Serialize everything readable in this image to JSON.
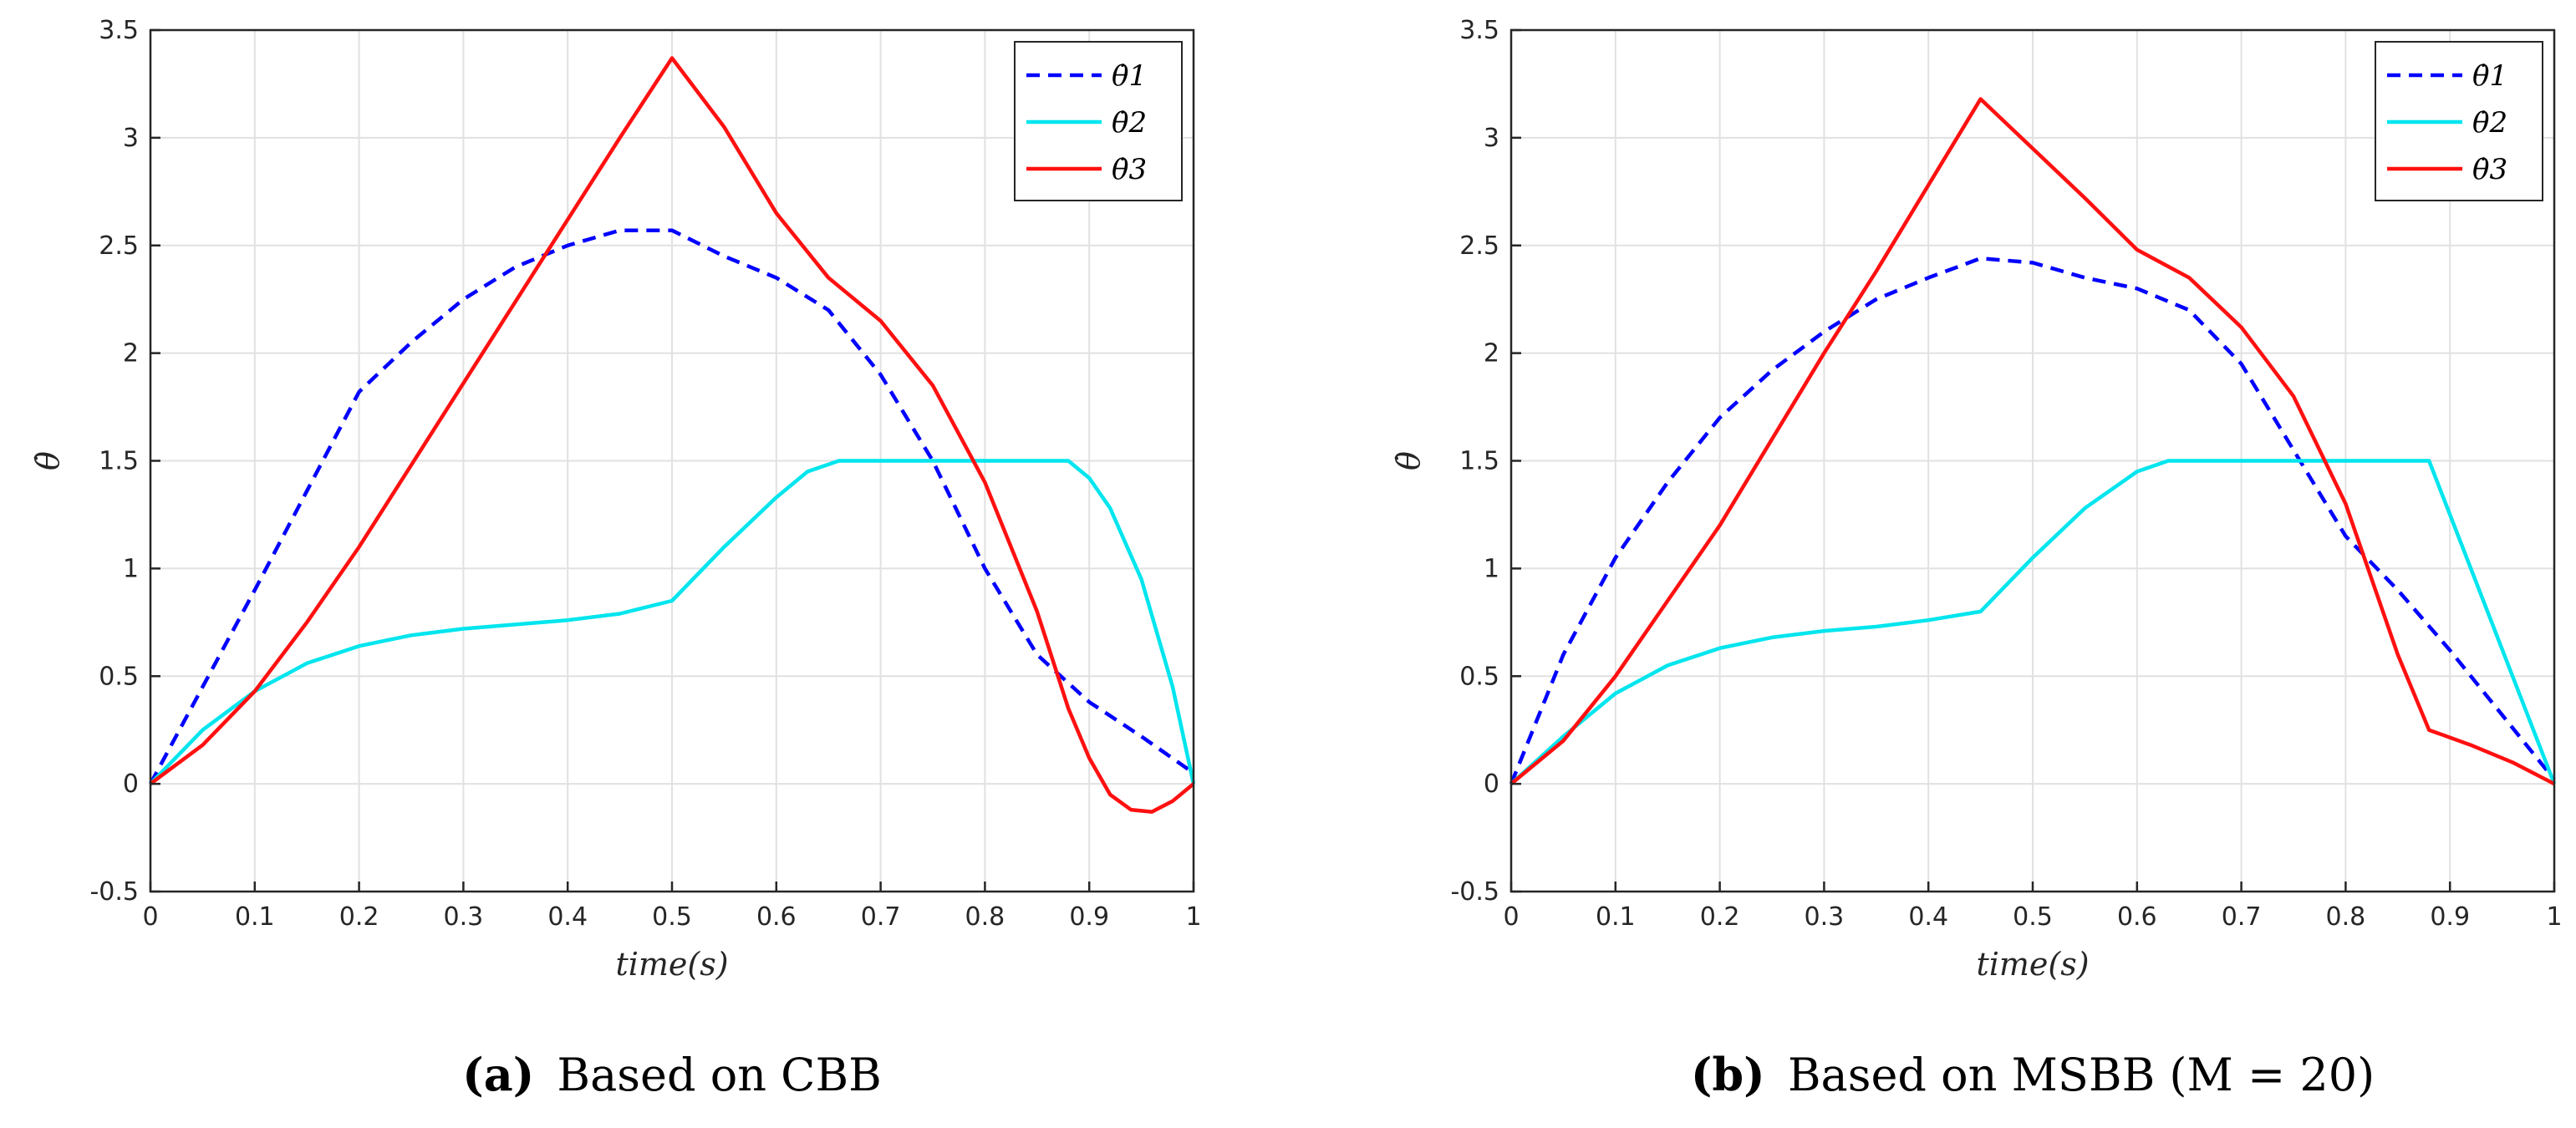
{
  "chart_data": [
    {
      "type": "line",
      "caption_label": "(a)",
      "caption_text": "Based on CBB",
      "xlabel": "time(s)",
      "ylabel": "θ̇",
      "xlim": [
        0,
        1
      ],
      "ylim": [
        -0.5,
        3.5
      ],
      "xticks": [
        "0",
        "0.1",
        "0.2",
        "0.3",
        "0.4",
        "0.5",
        "0.6",
        "0.7",
        "0.8",
        "0.9",
        "1"
      ],
      "yticks": [
        "-0.5",
        "0",
        "0.5",
        "1",
        "1.5",
        "2",
        "2.5",
        "3",
        "3.5"
      ],
      "grid": true,
      "legend_position": "top-right",
      "series": [
        {
          "name": "θ̇1",
          "color": "#0000ff",
          "style": "dashed",
          "x": [
            0,
            0.05,
            0.1,
            0.15,
            0.2,
            0.25,
            0.3,
            0.35,
            0.4,
            0.45,
            0.5,
            0.55,
            0.6,
            0.65,
            0.7,
            0.75,
            0.8,
            0.85,
            0.9,
            0.95,
            1
          ],
          "y": [
            0,
            0.45,
            0.9,
            1.36,
            1.82,
            2.05,
            2.25,
            2.4,
            2.5,
            2.57,
            2.57,
            2.45,
            2.35,
            2.2,
            1.9,
            1.5,
            1.0,
            0.6,
            0.38,
            0.22,
            0.05
          ]
        },
        {
          "name": "θ̇2",
          "color": "#00e5ee",
          "style": "solid",
          "x": [
            0,
            0.05,
            0.1,
            0.15,
            0.2,
            0.25,
            0.3,
            0.35,
            0.4,
            0.45,
            0.5,
            0.55,
            0.6,
            0.63,
            0.66,
            0.7,
            0.75,
            0.8,
            0.85,
            0.88,
            0.9,
            0.92,
            0.95,
            0.98,
            1
          ],
          "y": [
            0,
            0.25,
            0.43,
            0.56,
            0.64,
            0.69,
            0.72,
            0.74,
            0.76,
            0.79,
            0.85,
            1.1,
            1.33,
            1.45,
            1.5,
            1.5,
            1.5,
            1.5,
            1.5,
            1.5,
            1.42,
            1.28,
            0.95,
            0.45,
            0.0
          ]
        },
        {
          "name": "θ̇3",
          "color": "#ff1010",
          "style": "solid",
          "x": [
            0,
            0.05,
            0.1,
            0.15,
            0.2,
            0.25,
            0.3,
            0.35,
            0.4,
            0.45,
            0.5,
            0.55,
            0.6,
            0.65,
            0.7,
            0.75,
            0.8,
            0.85,
            0.88,
            0.9,
            0.92,
            0.94,
            0.96,
            0.98,
            1
          ],
          "y": [
            0,
            0.18,
            0.43,
            0.75,
            1.1,
            1.48,
            1.86,
            2.24,
            2.62,
            3.0,
            3.37,
            3.05,
            2.65,
            2.35,
            2.15,
            1.85,
            1.4,
            0.8,
            0.35,
            0.12,
            -0.05,
            -0.12,
            -0.13,
            -0.08,
            0
          ]
        }
      ]
    },
    {
      "type": "line",
      "caption_label": "(b)",
      "caption_text": "Based on MSBB (M = 20)",
      "xlabel": "time(s)",
      "ylabel": "θ̇",
      "xlim": [
        0,
        1
      ],
      "ylim": [
        -0.5,
        3.5
      ],
      "xticks": [
        "0",
        "0.1",
        "0.2",
        "0.3",
        "0.4",
        "0.5",
        "0.6",
        "0.7",
        "0.8",
        "0.9",
        "1"
      ],
      "yticks": [
        "-0.5",
        "0",
        "0.5",
        "1",
        "1.5",
        "2",
        "2.5",
        "3",
        "3.5"
      ],
      "grid": true,
      "legend_position": "top-right",
      "series": [
        {
          "name": "θ̇1",
          "color": "#0000ff",
          "style": "dashed",
          "x": [
            0,
            0.05,
            0.1,
            0.15,
            0.2,
            0.25,
            0.3,
            0.35,
            0.4,
            0.45,
            0.5,
            0.55,
            0.6,
            0.65,
            0.7,
            0.75,
            0.8,
            0.85,
            0.9,
            0.95,
            1
          ],
          "y": [
            0,
            0.6,
            1.05,
            1.4,
            1.7,
            1.92,
            2.1,
            2.25,
            2.35,
            2.44,
            2.42,
            2.35,
            2.3,
            2.2,
            1.95,
            1.55,
            1.15,
            0.9,
            0.62,
            0.32,
            0.02
          ]
        },
        {
          "name": "θ̇2",
          "color": "#00e5ee",
          "style": "solid",
          "x": [
            0,
            0.05,
            0.1,
            0.15,
            0.2,
            0.25,
            0.3,
            0.35,
            0.4,
            0.45,
            0.5,
            0.55,
            0.6,
            0.63,
            0.7,
            0.75,
            0.8,
            0.85,
            0.88,
            0.92,
            0.96,
            1
          ],
          "y": [
            0,
            0.22,
            0.42,
            0.55,
            0.63,
            0.68,
            0.71,
            0.73,
            0.76,
            0.8,
            1.05,
            1.28,
            1.45,
            1.5,
            1.5,
            1.5,
            1.5,
            1.5,
            1.5,
            1.0,
            0.5,
            0.0
          ]
        },
        {
          "name": "θ̇3",
          "color": "#ff1010",
          "style": "solid",
          "x": [
            0,
            0.05,
            0.1,
            0.15,
            0.2,
            0.25,
            0.3,
            0.35,
            0.4,
            0.45,
            0.5,
            0.55,
            0.6,
            0.65,
            0.7,
            0.75,
            0.8,
            0.85,
            0.88,
            0.92,
            0.96,
            1
          ],
          "y": [
            0,
            0.2,
            0.5,
            0.85,
            1.2,
            1.6,
            2.0,
            2.38,
            2.78,
            3.18,
            2.95,
            2.72,
            2.48,
            2.35,
            2.12,
            1.8,
            1.3,
            0.6,
            0.25,
            0.18,
            0.1,
            0.0
          ]
        }
      ]
    }
  ]
}
